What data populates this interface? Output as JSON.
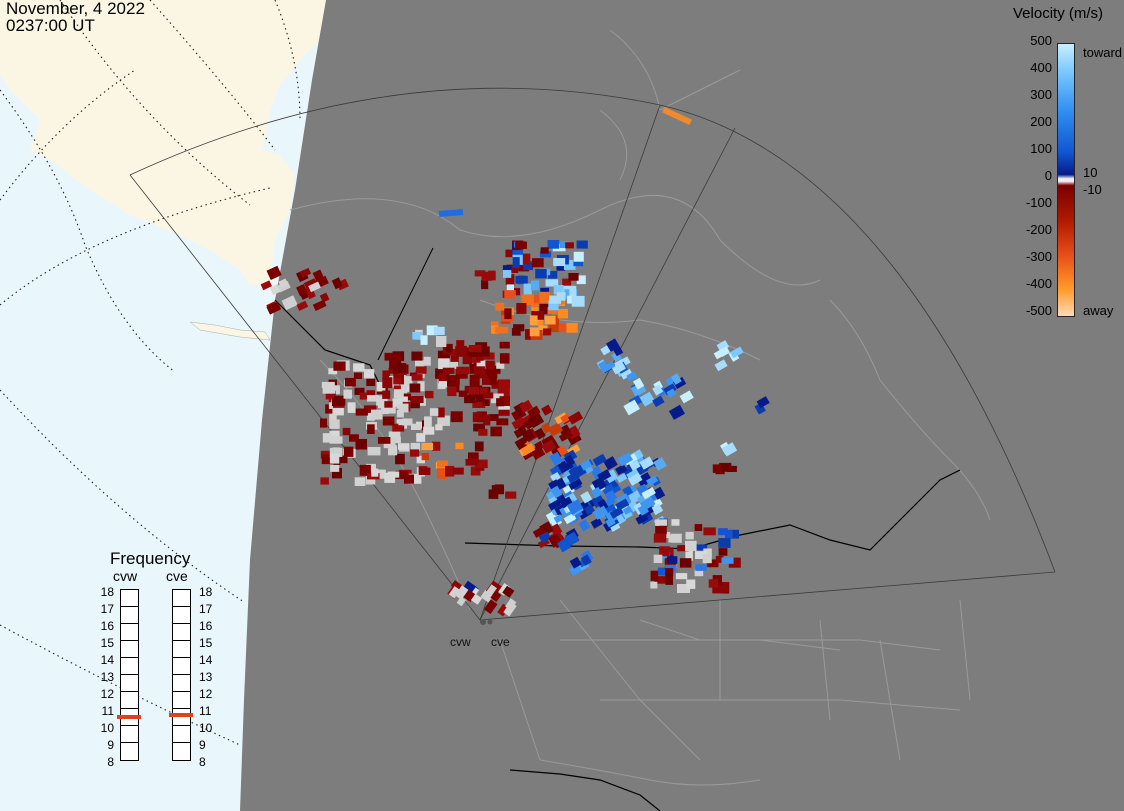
{
  "header": {
    "date": "November, 4 2022",
    "time": "0237:00 UT"
  },
  "velocity_scale": {
    "title": "Velocity (m/s)",
    "ticks": [
      "500",
      "400",
      "300",
      "200",
      "100",
      "10",
      "0",
      "-10",
      "-100",
      "-200",
      "-300",
      "-400",
      "-500"
    ],
    "toward_label": "toward",
    "away_label": "away",
    "colors": [
      "#c6f0ff",
      "#7cc8ff",
      "#2f8ef0",
      "#1155d0",
      "#071a8a",
      "#f0f0f0",
      "#7a0000",
      "#b01a00",
      "#e8501a",
      "#ff9a28",
      "#ffdab4"
    ]
  },
  "frequency_panel": {
    "title": "Frequency",
    "radars": [
      {
        "name": "cvw",
        "selected_mhz": 10.5
      },
      {
        "name": "cve",
        "selected_mhz": 10.6
      }
    ],
    "scale": [
      "18",
      "17",
      "16",
      "15",
      "14",
      "13",
      "12",
      "11",
      "10",
      "9",
      "8"
    ]
  },
  "radar_sites": [
    {
      "code": "cvw",
      "label": "cvw"
    },
    {
      "code": "cve",
      "label": "cve"
    }
  ],
  "map_colors": {
    "ocean": "#e9f6fc",
    "land_outside": "#fbf6e4",
    "dark_side": "#7d7d7d",
    "boundaries": "#9a9a9a",
    "borders": "#000000",
    "ground_scatter": "#d2d2d2"
  }
}
